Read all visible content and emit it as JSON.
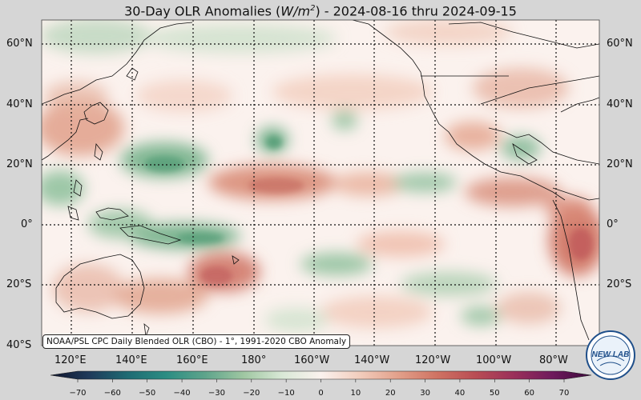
{
  "title": {
    "prefix": "30-Day OLR Anomalies (",
    "unit_base": "W/m",
    "unit_exp": "2",
    "suffix": ") - 2024-08-16 thru 2024-09-15"
  },
  "lat_labels": [
    "60°N",
    "40°N",
    "20°N",
    "0°",
    "20°S",
    "40°S"
  ],
  "lon_labels": [
    "120°E",
    "140°E",
    "160°E",
    "180°",
    "160°W",
    "140°W",
    "120°W",
    "100°W",
    "80°W"
  ],
  "credit": "NOAA/PSL CPC Daily Blended OLR (CBO) - 1°, 1991-2020 CBO Anomaly",
  "colorbar": {
    "ticks": [
      "−70",
      "−60",
      "−50",
      "−40",
      "−30",
      "−20",
      "−10",
      "0",
      "10",
      "20",
      "30",
      "40",
      "50",
      "60",
      "70"
    ],
    "stops": [
      "#10162e",
      "#1f3a5a",
      "#1e6b73",
      "#2b8d83",
      "#5ea48b",
      "#9fc7a2",
      "#d9e8d6",
      "#fbf2ee",
      "#f2cdbd",
      "#e2a08a",
      "#cf7363",
      "#b94d54",
      "#9a2f5a",
      "#6e1a5c",
      "#3c0a3c"
    ]
  },
  "logo": {
    "text": "NEW LAB",
    "icon": "noaa-psl-logo"
  },
  "colors": {
    "positive": "#d88c72",
    "negative": "#6fae86",
    "neutral": "#fbf2ee",
    "background": "#d6d6d6"
  }
}
